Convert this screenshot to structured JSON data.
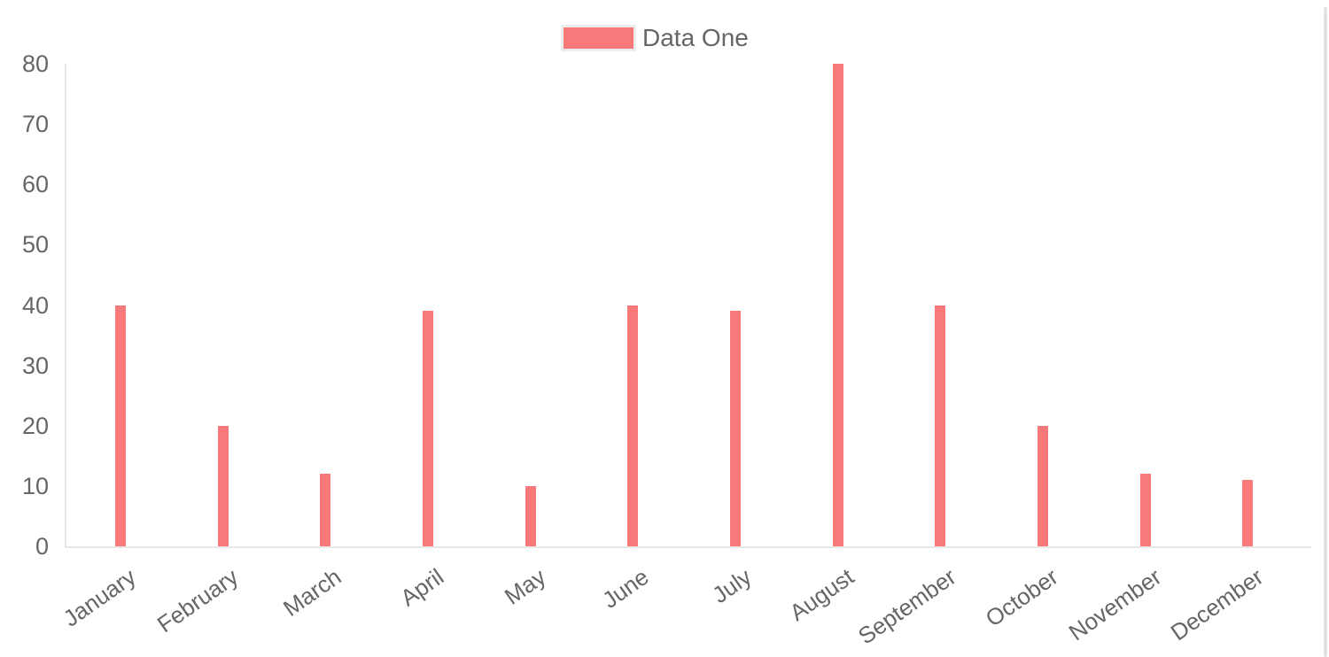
{
  "chart_data": {
    "type": "bar",
    "title": "",
    "categories": [
      "January",
      "February",
      "March",
      "April",
      "May",
      "June",
      "July",
      "August",
      "September",
      "October",
      "November",
      "December"
    ],
    "series": [
      {
        "name": "Data One",
        "color": "#f87979",
        "values": [
          40,
          20,
          12,
          39,
          10,
          40,
          39,
          80,
          40,
          20,
          12,
          11
        ]
      }
    ],
    "xlabel": "",
    "ylabel": "",
    "ylim": [
      0,
      80
    ],
    "yticks": [
      0,
      10,
      20,
      30,
      40,
      50,
      60,
      70,
      80
    ],
    "grid": false,
    "legend_position": "top",
    "x_label_rotation_deg": -35,
    "axis_line_color": "#e8e8e8",
    "tick_text_color": "#666666",
    "background_color": "#ffffff"
  },
  "legend": {
    "items": [
      {
        "label": "Data One",
        "swatch_color": "#f87979"
      }
    ]
  },
  "scrollbar": {
    "color": "#e2e2e2"
  }
}
